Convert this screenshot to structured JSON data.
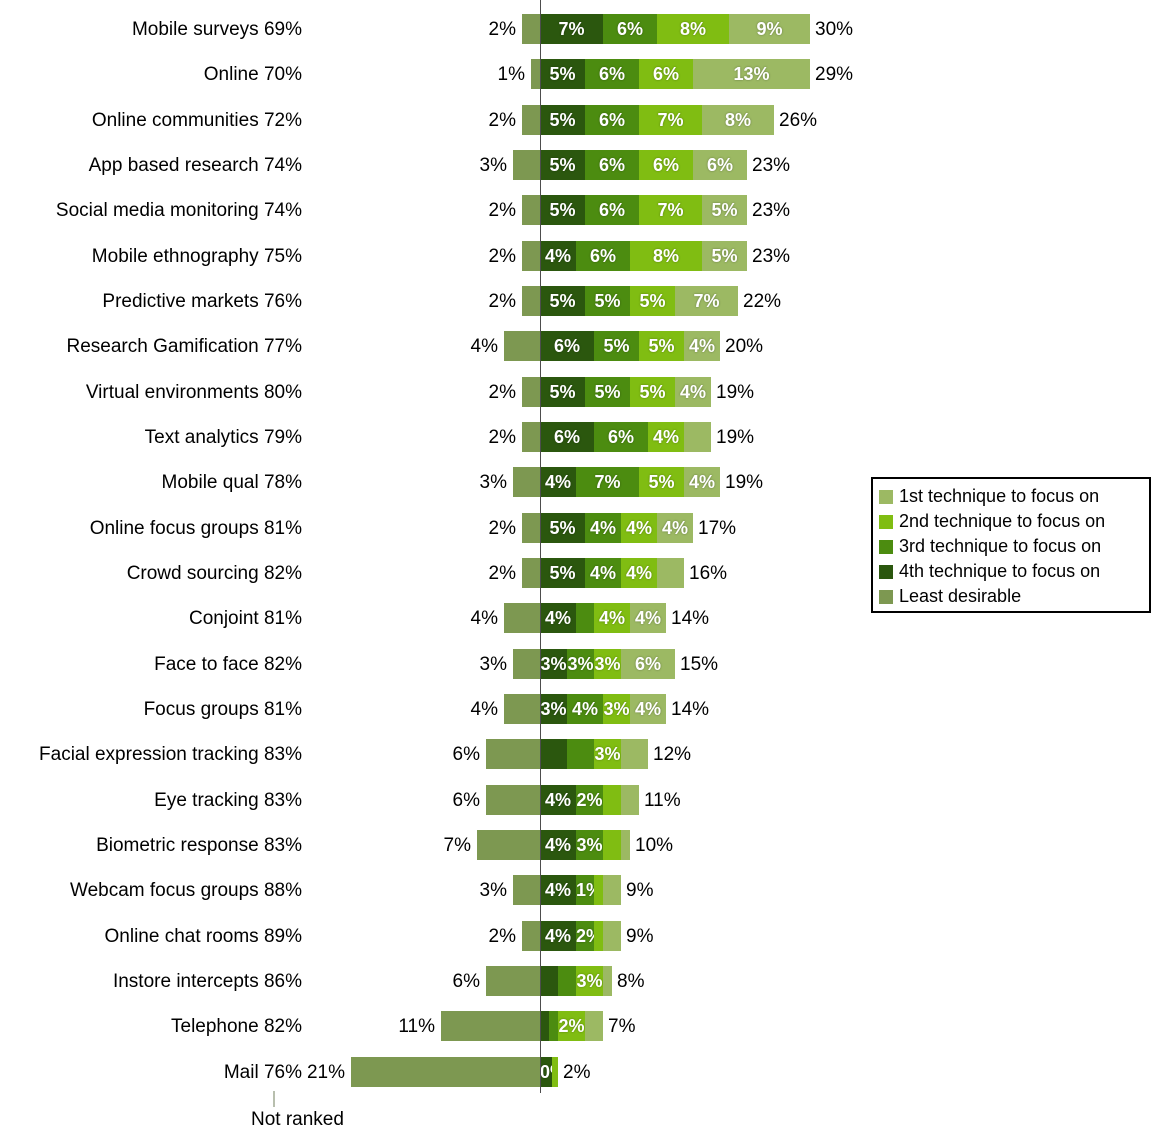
{
  "chart_data": {
    "type": "bar",
    "variant": "horizontal-diverging-stacked",
    "title": "",
    "xlabel": "",
    "ylabel": "",
    "legend_position": "right",
    "axis_note": {
      "label": "Not ranked"
    },
    "legend": [
      {
        "key": "first",
        "label": "1st technique to focus on",
        "color": "#9CB963"
      },
      {
        "key": "second",
        "label": "2nd technique to focus on",
        "color": "#80BD12"
      },
      {
        "key": "third",
        "label": "3rd technique to focus on",
        "color": "#4C8C10"
      },
      {
        "key": "fourth",
        "label": "4th technique to focus on",
        "color": "#2B570E"
      },
      {
        "key": "least",
        "label": "Least desirable",
        "color": "#7D9851"
      }
    ],
    "segment_order": [
      "fourth",
      "third",
      "second",
      "first"
    ],
    "rows": [
      {
        "name": "Mobile surveys",
        "not_ranked": "69%",
        "least": {
          "value": 2,
          "label": "2%"
        },
        "segments": [
          {
            "key": "fourth",
            "value": 7,
            "label": "7%"
          },
          {
            "key": "third",
            "value": 6,
            "label": "6%"
          },
          {
            "key": "second",
            "value": 8,
            "label": "8%"
          },
          {
            "key": "first",
            "value": 9,
            "label": "9%"
          }
        ],
        "total": "30%"
      },
      {
        "name": "Online",
        "not_ranked": "70%",
        "least": {
          "value": 1,
          "label": "1%"
        },
        "segments": [
          {
            "key": "fourth",
            "value": 5,
            "label": "5%"
          },
          {
            "key": "third",
            "value": 6,
            "label": "6%"
          },
          {
            "key": "second",
            "value": 6,
            "label": "6%"
          },
          {
            "key": "first",
            "value": 13,
            "label": "13%"
          }
        ],
        "total": "29%"
      },
      {
        "name": "Online communities",
        "not_ranked": "72%",
        "least": {
          "value": 2,
          "label": "2%"
        },
        "segments": [
          {
            "key": "fourth",
            "value": 5,
            "label": "5%"
          },
          {
            "key": "third",
            "value": 6,
            "label": "6%"
          },
          {
            "key": "second",
            "value": 7,
            "label": "7%"
          },
          {
            "key": "first",
            "value": 8,
            "label": "8%"
          }
        ],
        "total": "26%"
      },
      {
        "name": "App based research",
        "not_ranked": "74%",
        "least": {
          "value": 3,
          "label": "3%"
        },
        "segments": [
          {
            "key": "fourth",
            "value": 5,
            "label": "5%"
          },
          {
            "key": "third",
            "value": 6,
            "label": "6%"
          },
          {
            "key": "second",
            "value": 6,
            "label": "6%"
          },
          {
            "key": "first",
            "value": 6,
            "label": "6%"
          }
        ],
        "total": "23%"
      },
      {
        "name": "Social media monitoring",
        "not_ranked": "74%",
        "least": {
          "value": 2,
          "label": "2%"
        },
        "segments": [
          {
            "key": "fourth",
            "value": 5,
            "label": "5%"
          },
          {
            "key": "third",
            "value": 6,
            "label": "6%"
          },
          {
            "key": "second",
            "value": 7,
            "label": "7%"
          },
          {
            "key": "first",
            "value": 5,
            "label": "5%"
          }
        ],
        "total": "23%"
      },
      {
        "name": "Mobile ethnography",
        "not_ranked": "75%",
        "least": {
          "value": 2,
          "label": "2%"
        },
        "segments": [
          {
            "key": "fourth",
            "value": 4,
            "label": "4%"
          },
          {
            "key": "third",
            "value": 6,
            "label": "6%"
          },
          {
            "key": "second",
            "value": 8,
            "label": "8%"
          },
          {
            "key": "first",
            "value": 5,
            "label": "5%"
          }
        ],
        "total": "23%"
      },
      {
        "name": "Predictive markets",
        "not_ranked": "76%",
        "least": {
          "value": 2,
          "label": "2%"
        },
        "segments": [
          {
            "key": "fourth",
            "value": 5,
            "label": "5%"
          },
          {
            "key": "third",
            "value": 5,
            "label": "5%"
          },
          {
            "key": "second",
            "value": 5,
            "label": "5%"
          },
          {
            "key": "first",
            "value": 7,
            "label": "7%"
          }
        ],
        "total": "22%"
      },
      {
        "name": "Research Gamification",
        "not_ranked": "77%",
        "least": {
          "value": 4,
          "label": "4%"
        },
        "segments": [
          {
            "key": "fourth",
            "value": 6,
            "label": "6%"
          },
          {
            "key": "third",
            "value": 5,
            "label": "5%"
          },
          {
            "key": "second",
            "value": 5,
            "label": "5%"
          },
          {
            "key": "first",
            "value": 4,
            "label": "4%"
          }
        ],
        "total": "20%"
      },
      {
        "name": "Virtual environments",
        "not_ranked": "80%",
        "least": {
          "value": 2,
          "label": "2%"
        },
        "segments": [
          {
            "key": "fourth",
            "value": 5,
            "label": "5%"
          },
          {
            "key": "third",
            "value": 5,
            "label": "5%"
          },
          {
            "key": "second",
            "value": 5,
            "label": "5%"
          },
          {
            "key": "first",
            "value": 4,
            "label": "4%"
          }
        ],
        "total": "19%"
      },
      {
        "name": "Text analytics",
        "not_ranked": "79%",
        "least": {
          "value": 2,
          "label": "2%"
        },
        "segments": [
          {
            "key": "fourth",
            "value": 6,
            "label": "6%"
          },
          {
            "key": "third",
            "value": 6,
            "label": "6%"
          },
          {
            "key": "second",
            "value": 4,
            "label": "4%"
          },
          {
            "key": "first",
            "value": 3,
            "label": ""
          }
        ],
        "total": "19%"
      },
      {
        "name": "Mobile qual",
        "not_ranked": "78%",
        "least": {
          "value": 3,
          "label": "3%"
        },
        "segments": [
          {
            "key": "fourth",
            "value": 4,
            "label": "4%"
          },
          {
            "key": "third",
            "value": 7,
            "label": "7%"
          },
          {
            "key": "second",
            "value": 5,
            "label": "5%"
          },
          {
            "key": "first",
            "value": 4,
            "label": "4%"
          }
        ],
        "total": "19%"
      },
      {
        "name": "Online focus groups",
        "not_ranked": "81%",
        "least": {
          "value": 2,
          "label": "2%"
        },
        "segments": [
          {
            "key": "fourth",
            "value": 5,
            "label": "5%"
          },
          {
            "key": "third",
            "value": 4,
            "label": "4%"
          },
          {
            "key": "second",
            "value": 4,
            "label": "4%"
          },
          {
            "key": "first",
            "value": 4,
            "label": "4%"
          }
        ],
        "total": "17%"
      },
      {
        "name": "Crowd sourcing",
        "not_ranked": "82%",
        "least": {
          "value": 2,
          "label": "2%"
        },
        "segments": [
          {
            "key": "fourth",
            "value": 5,
            "label": "5%"
          },
          {
            "key": "third",
            "value": 4,
            "label": "4%"
          },
          {
            "key": "second",
            "value": 4,
            "label": "4%"
          },
          {
            "key": "first",
            "value": 3,
            "label": ""
          }
        ],
        "total": "16%"
      },
      {
        "name": "Conjoint",
        "not_ranked": "81%",
        "least": {
          "value": 4,
          "label": "4%"
        },
        "segments": [
          {
            "key": "fourth",
            "value": 4,
            "label": "4%"
          },
          {
            "key": "third",
            "value": 2,
            "label": ""
          },
          {
            "key": "second",
            "value": 4,
            "label": "4%"
          },
          {
            "key": "first",
            "value": 4,
            "label": "4%"
          }
        ],
        "total": "14%"
      },
      {
        "name": "Face to face",
        "not_ranked": "82%",
        "least": {
          "value": 3,
          "label": "3%"
        },
        "segments": [
          {
            "key": "fourth",
            "value": 3,
            "label": "3%"
          },
          {
            "key": "third",
            "value": 3,
            "label": "3%"
          },
          {
            "key": "second",
            "value": 3,
            "label": "3%"
          },
          {
            "key": "first",
            "value": 6,
            "label": "6%"
          }
        ],
        "total": "15%"
      },
      {
        "name": "Focus groups",
        "not_ranked": "81%",
        "least": {
          "value": 4,
          "label": "4%"
        },
        "segments": [
          {
            "key": "fourth",
            "value": 3,
            "label": "3%"
          },
          {
            "key": "third",
            "value": 4,
            "label": "4%"
          },
          {
            "key": "second",
            "value": 3,
            "label": "3%"
          },
          {
            "key": "first",
            "value": 4,
            "label": "4%"
          }
        ],
        "total": "14%"
      },
      {
        "name": "Facial expression tracking",
        "not_ranked": "83%",
        "least": {
          "value": 6,
          "label": "6%"
        },
        "segments": [
          {
            "key": "fourth",
            "value": 3,
            "label": ""
          },
          {
            "key": "third",
            "value": 3,
            "label": ""
          },
          {
            "key": "second",
            "value": 3,
            "label": "3%"
          },
          {
            "key": "first",
            "value": 3,
            "label": ""
          }
        ],
        "total": "12%"
      },
      {
        "name": "Eye tracking",
        "not_ranked": "83%",
        "least": {
          "value": 6,
          "label": "6%"
        },
        "segments": [
          {
            "key": "fourth",
            "value": 4,
            "label": "4%"
          },
          {
            "key": "third",
            "value": 3,
            "label": "2%"
          },
          {
            "key": "second",
            "value": 2,
            "label": ""
          },
          {
            "key": "first",
            "value": 2,
            "label": ""
          }
        ],
        "total": "11%"
      },
      {
        "name": "Biometric response",
        "not_ranked": "83%",
        "least": {
          "value": 7,
          "label": "7%"
        },
        "segments": [
          {
            "key": "fourth",
            "value": 4,
            "label": "4%"
          },
          {
            "key": "third",
            "value": 3,
            "label": "3%"
          },
          {
            "key": "second",
            "value": 2,
            "label": ""
          },
          {
            "key": "first",
            "value": 1,
            "label": ""
          }
        ],
        "total": "10%"
      },
      {
        "name": "Webcam focus groups",
        "not_ranked": "88%",
        "least": {
          "value": 3,
          "label": "3%"
        },
        "segments": [
          {
            "key": "fourth",
            "value": 4,
            "label": "4%"
          },
          {
            "key": "third",
            "value": 2,
            "label": "1%"
          },
          {
            "key": "second",
            "value": 1,
            "label": ""
          },
          {
            "key": "first",
            "value": 2,
            "label": ""
          }
        ],
        "total": "9%"
      },
      {
        "name": "Online chat rooms",
        "not_ranked": "89%",
        "least": {
          "value": 2,
          "label": "2%"
        },
        "segments": [
          {
            "key": "fourth",
            "value": 4,
            "label": "4%"
          },
          {
            "key": "third",
            "value": 2,
            "label": "2%"
          },
          {
            "key": "second",
            "value": 1,
            "label": ""
          },
          {
            "key": "first",
            "value": 2,
            "label": ""
          }
        ],
        "total": "9%"
      },
      {
        "name": "Instore intercepts",
        "not_ranked": "86%",
        "least": {
          "value": 6,
          "label": "6%"
        },
        "segments": [
          {
            "key": "fourth",
            "value": 2,
            "label": ""
          },
          {
            "key": "third",
            "value": 2,
            "label": ""
          },
          {
            "key": "second",
            "value": 3,
            "label": "3%"
          },
          {
            "key": "first",
            "value": 1,
            "label": ""
          }
        ],
        "total": "8%"
      },
      {
        "name": "Telephone",
        "not_ranked": "82%",
        "least": {
          "value": 11,
          "label": "11%"
        },
        "segments": [
          {
            "key": "fourth",
            "value": 1,
            "label": ""
          },
          {
            "key": "third",
            "value": 1,
            "label": ""
          },
          {
            "key": "second",
            "value": 3,
            "label": "2%"
          },
          {
            "key": "first",
            "value": 2,
            "label": ""
          }
        ],
        "total": "7%"
      },
      {
        "name": "Mail",
        "not_ranked": "76%",
        "least": {
          "value": 21,
          "label": "21%"
        },
        "segments": [
          {
            "key": "fourth",
            "value": 1.3,
            "label": "0%"
          },
          {
            "key": "third",
            "value": 0,
            "label": ""
          },
          {
            "key": "second",
            "value": 0.7,
            "label": ""
          },
          {
            "key": "first",
            "value": 0,
            "label": ""
          }
        ],
        "total": "2%"
      }
    ]
  }
}
